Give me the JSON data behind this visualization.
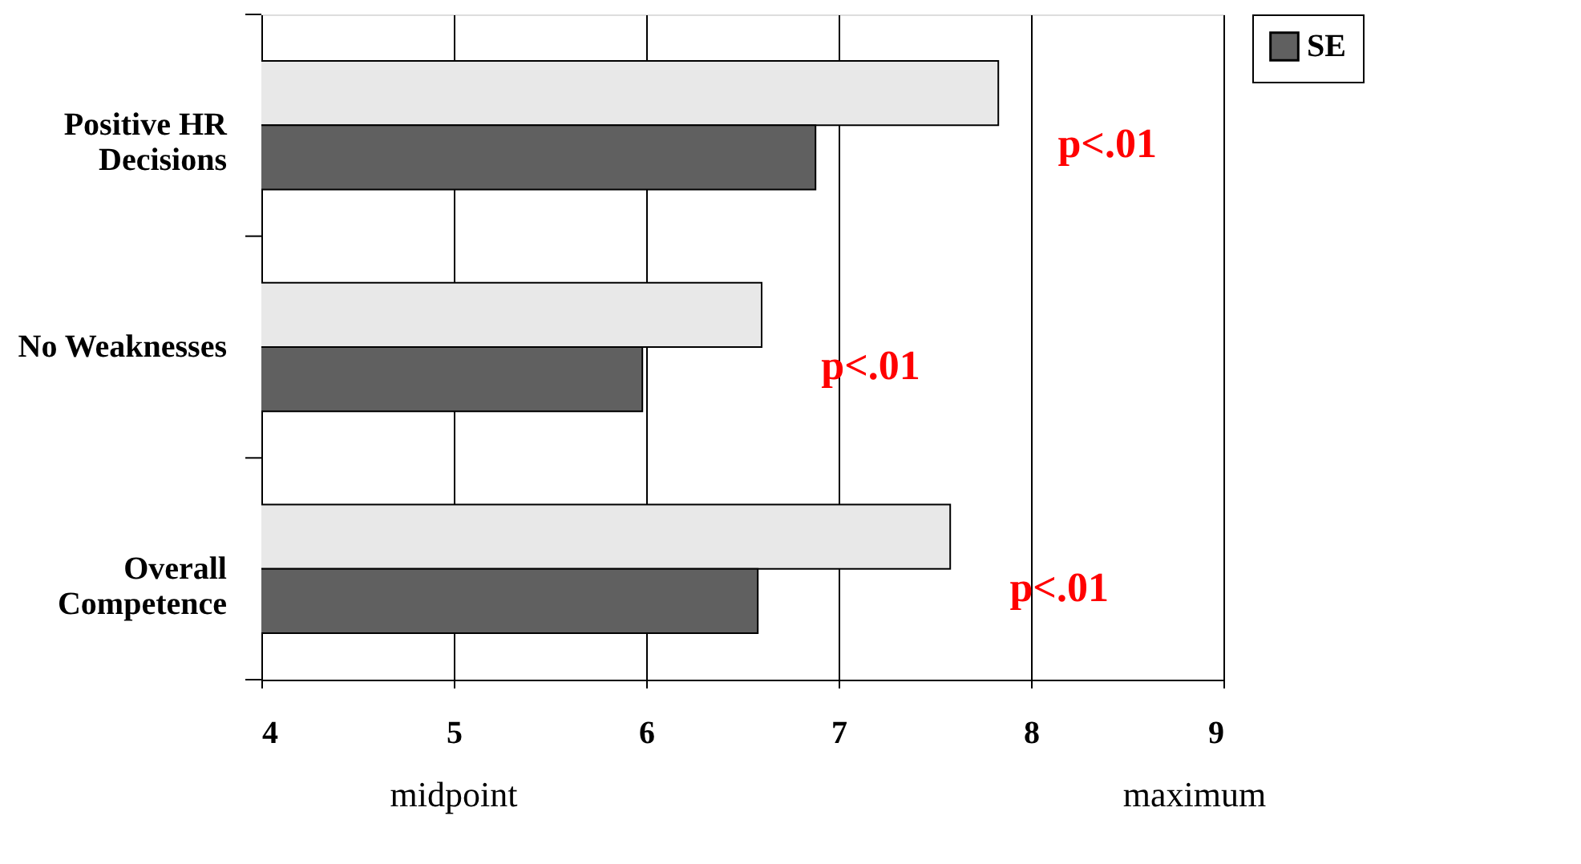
{
  "chart_data": {
    "type": "bar",
    "orientation": "horizontal",
    "categories": [
      "Positive HR Decisions",
      "No Weaknesses",
      "Overall Competence"
    ],
    "series": [
      {
        "color": "#e8e8e8",
        "values": [
          7.83,
          6.6,
          7.58
        ]
      },
      {
        "name": "SE",
        "color": "#606060",
        "values": [
          6.88,
          5.98,
          6.58
        ]
      }
    ],
    "xlim": [
      4,
      9
    ],
    "xticks": [
      4,
      5,
      6,
      7,
      8,
      9
    ],
    "grid": "x",
    "legend": "right",
    "annotations": [
      "p<.01",
      "p<.01",
      "p<.01",
      "midpoint",
      "maximum"
    ]
  }
}
